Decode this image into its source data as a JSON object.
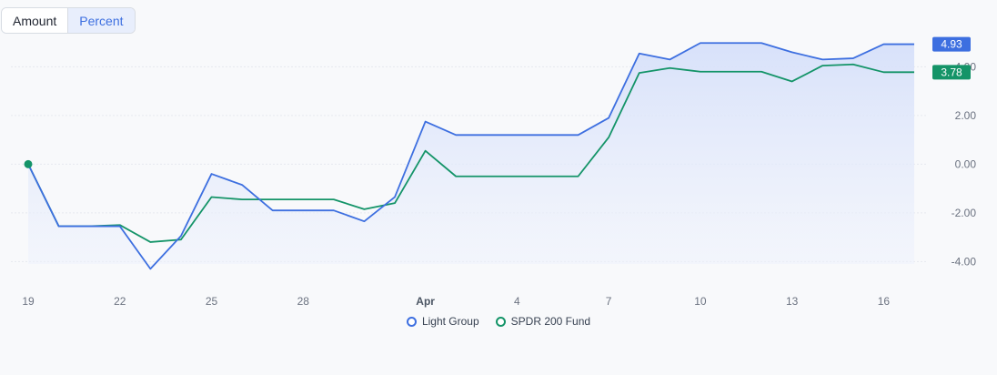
{
  "toggle": {
    "amount_label": "Amount",
    "percent_label": "Percent",
    "active": "percent"
  },
  "colors": {
    "series_a": "#3d6fe0",
    "series_b": "#149468",
    "fill": "#dfe6fb"
  },
  "chart_data": {
    "type": "line",
    "x": [
      "Mar 19",
      "Mar 20",
      "Mar 21",
      "Mar 22",
      "Mar 23",
      "Mar 24",
      "Mar 25",
      "Mar 26",
      "Mar 27",
      "Mar 28",
      "Mar 29",
      "Mar 30",
      "Mar 31",
      "Apr 1",
      "Apr 2",
      "Apr 3",
      "Apr 4",
      "Apr 5",
      "Apr 6",
      "Apr 7",
      "Apr 8",
      "Apr 9",
      "Apr 10",
      "Apr 11",
      "Apr 12",
      "Apr 13",
      "Apr 14",
      "Apr 15",
      "Apr 16",
      "Apr 17"
    ],
    "x_tick_labels": [
      {
        "index": 0,
        "label": "19",
        "bold": false
      },
      {
        "index": 3,
        "label": "22",
        "bold": false
      },
      {
        "index": 6,
        "label": "25",
        "bold": false
      },
      {
        "index": 9,
        "label": "28",
        "bold": false
      },
      {
        "index": 13,
        "label": "Apr",
        "bold": true
      },
      {
        "index": 16,
        "label": "4",
        "bold": false
      },
      {
        "index": 19,
        "label": "7",
        "bold": false
      },
      {
        "index": 22,
        "label": "10",
        "bold": false
      },
      {
        "index": 25,
        "label": "13",
        "bold": false
      },
      {
        "index": 28,
        "label": "16",
        "bold": false
      }
    ],
    "series": [
      {
        "name": "Light Group",
        "values": [
          0,
          -2.55,
          -2.55,
          -2.55,
          -4.3,
          -2.95,
          -0.4,
          -0.85,
          -1.9,
          -1.9,
          -1.9,
          -2.35,
          -1.35,
          1.75,
          1.2,
          1.2,
          1.2,
          1.2,
          1.2,
          1.9,
          4.55,
          4.3,
          4.98,
          4.98,
          4.98,
          4.6,
          4.3,
          4.35,
          4.93,
          4.93
        ],
        "last_value_label": "4.93"
      },
      {
        "name": "SPDR 200 Fund",
        "values": [
          0,
          -2.55,
          -2.55,
          -2.5,
          -3.2,
          -3.1,
          -1.35,
          -1.45,
          -1.45,
          -1.45,
          -1.45,
          -1.85,
          -1.6,
          0.55,
          -0.5,
          -0.5,
          -0.5,
          -0.5,
          -0.5,
          1.1,
          3.75,
          3.95,
          3.8,
          3.8,
          3.8,
          3.4,
          4.05,
          4.1,
          3.78,
          3.78
        ],
        "last_value_label": "3.78"
      }
    ],
    "y_tick_labels": [
      "4.00",
      "2.00",
      "0.00",
      "-2.00",
      "-4.00"
    ],
    "y_ticks": [
      4,
      2,
      0,
      -2,
      -4
    ],
    "ylim": [
      -4.1,
      5.4
    ],
    "grid": true,
    "legend": "bottom-center"
  }
}
